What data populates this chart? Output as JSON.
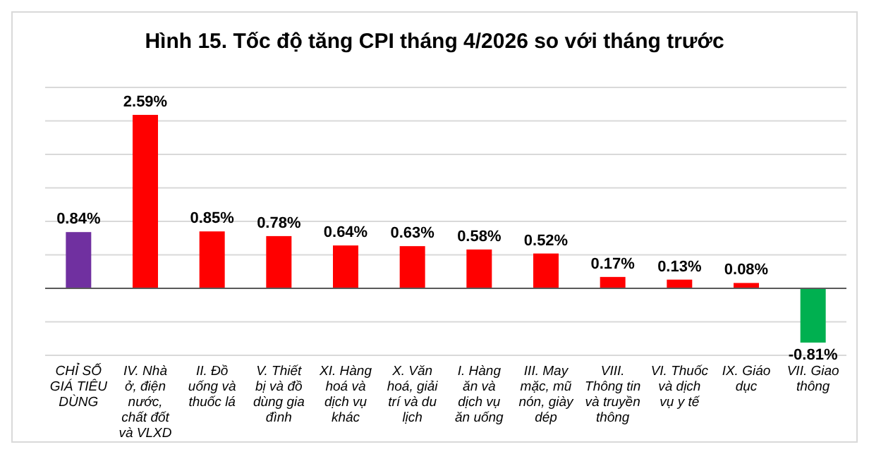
{
  "chart_data": {
    "type": "bar",
    "title": "Hình 15. Tốc độ tăng CPI tháng 4/2026 so với tháng trước",
    "categories": [
      "CHỈ SỐ GIÁ TIÊU DÙNG",
      "IV. Nhà ở, điện nước, chất đốt và VLXD",
      "II. Đồ uống và thuốc lá",
      "V. Thiết bị và đồ dùng gia đình",
      "XI. Hàng hoá và dịch vụ khác",
      "X. Văn hoá, giải trí và du lịch",
      "I. Hàng ăn và dịch vụ ăn uống",
      "III. May mặc, mũ nón, giày dép",
      "VIII. Thông tin và truyền thông",
      "VI. Thuốc và dịch vụ y tế",
      "IX. Giáo dục",
      "VII. Giao thông"
    ],
    "values": [
      0.84,
      2.59,
      0.85,
      0.78,
      0.64,
      0.63,
      0.58,
      0.52,
      0.17,
      0.13,
      0.08,
      -0.81
    ],
    "colors": [
      "#7030a0",
      "#ff0000",
      "#ff0000",
      "#ff0000",
      "#ff0000",
      "#ff0000",
      "#ff0000",
      "#ff0000",
      "#ff0000",
      "#ff0000",
      "#ff0000",
      "#00b050"
    ],
    "value_labels": [
      "0.84%",
      "2.59%",
      "0.85%",
      "0.78%",
      "0.64%",
      "0.63%",
      "0.58%",
      "0.52%",
      "0.17%",
      "0.13%",
      "0.08%",
      "-0.81%"
    ],
    "ylim": [
      -1,
      3
    ],
    "yticks": [
      {
        "value": -1,
        "label": null
      },
      {
        "value": -0.5,
        "label": null
      },
      {
        "value": 0,
        "label": null
      },
      {
        "value": 0.5,
        "label": null
      },
      {
        "value": 1,
        "label": null
      },
      {
        "value": 1.5,
        "label": null
      },
      {
        "value": 2,
        "label": null
      },
      {
        "value": 2.5,
        "label": null
      },
      {
        "value": 3,
        "label": null
      }
    ],
    "grid": "y",
    "tick_labels": "x"
  }
}
